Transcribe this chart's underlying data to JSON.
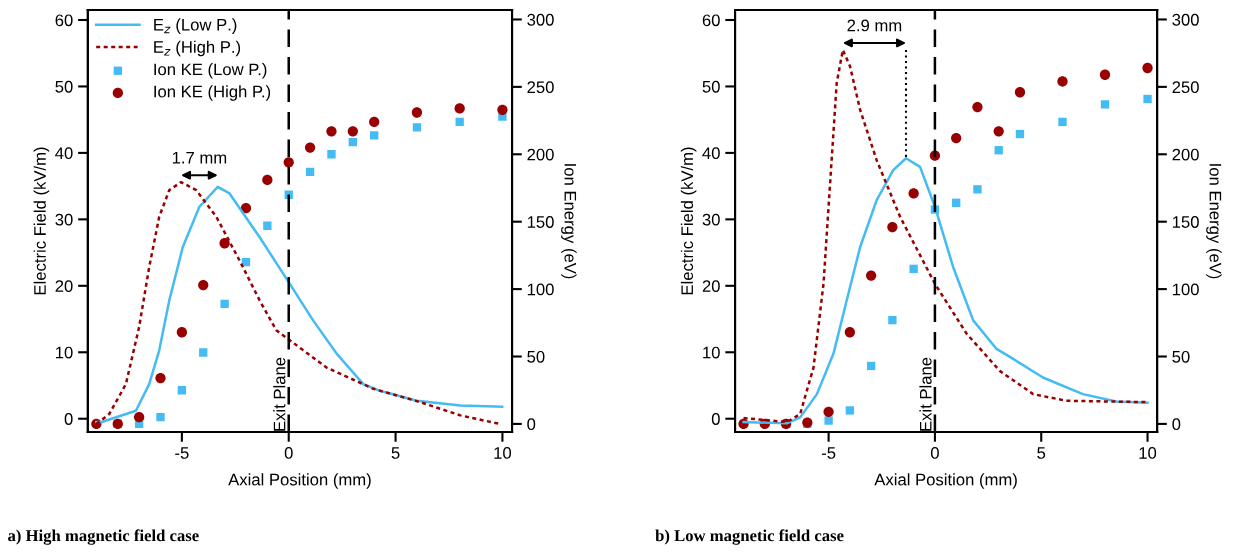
{
  "chart_data": [
    {
      "type": "line",
      "title": "a) High magnetic field case",
      "xlabel": "Axial Position (mm)",
      "ylabel": "Electric Field (kV/m)",
      "y2label": "Ion Energy (eV)",
      "xlim": [
        -9.4,
        10.45
      ],
      "xticks": [
        -5,
        0,
        5,
        10
      ],
      "ylim": [
        -2,
        61.5
      ],
      "yticks": [
        0,
        10,
        20,
        30,
        40,
        50,
        60
      ],
      "y2lim": [
        -6,
        307
      ],
      "y2ticks": [
        0,
        50,
        100,
        150,
        200,
        250,
        300
      ],
      "legend": "top left",
      "grid": false,
      "ref_lines": [
        {
          "axis": "x",
          "value": 0,
          "label": "Exit Plane",
          "color": "#000000",
          "line_style": "dashed"
        }
      ],
      "annotations": [
        "1.7 mm"
      ],
      "series": [
        {
          "name": "E$_{z}$ (Low P.)",
          "line_style": "solid",
          "color": "#44bbf2",
          "x": [
            -9.0,
            -8.75,
            -7.15,
            -6.53,
            -6.06,
            -5.59,
            -4.96,
            -4.18,
            -3.32,
            -2.77,
            -1.36,
            0.05,
            1.14,
            2.24,
            3.49,
            4.27,
            6.0,
            8.03,
            9.99
          ],
          "values": [
            -0.5,
            -0.5,
            1.2,
            5.2,
            10.3,
            17.8,
            25.8,
            31.9,
            34.9,
            33.9,
            27.3,
            20.3,
            14.8,
            9.8,
            5.2,
            4.2,
            2.7,
            2.0,
            1.8
          ]
        },
        {
          "name": "E$_{z}$ (High P.)",
          "line_style": "dashed",
          "color": "#990000",
          "x": [
            -9.0,
            -8.4,
            -7.62,
            -7.0,
            -6.53,
            -6.06,
            -5.59,
            -5.04,
            -4.33,
            -3.39,
            -2.3,
            -1.36,
            -0.58,
            0.05,
            1.77,
            3.96,
            6.15,
            8.03,
            9.9
          ],
          "values": [
            -0.8,
            0.7,
            5.2,
            13.8,
            22.8,
            30.4,
            34.4,
            35.6,
            34.4,
            30.4,
            23.8,
            17.8,
            13.3,
            11.8,
            7.7,
            4.5,
            2.5,
            0.5,
            -0.8
          ]
        },
        {
          "name": "Ion KE (Low P.)",
          "type": "scatter",
          "marker": "square",
          "axis": "y2",
          "color": "#44bbf2",
          "x": [
            -8,
            -7,
            -6,
            -5,
            -4,
            -3,
            -2,
            -1,
            0,
            1,
            2,
            3,
            4,
            6,
            8,
            10
          ],
          "values": [
            0,
            0,
            5,
            25,
            53,
            89,
            120,
            147,
            170,
            187,
            200,
            209,
            214,
            220,
            224,
            228
          ]
        },
        {
          "name": "Ion KE (High P.)",
          "type": "scatter",
          "marker": "circle",
          "axis": "y2",
          "color": "#990000",
          "x": [
            -9,
            -8,
            -7,
            -6,
            -5,
            -4,
            -3,
            -2,
            -1,
            0,
            1,
            2,
            3,
            4,
            6,
            8,
            10
          ],
          "values": [
            0,
            0,
            5,
            34,
            68,
            103,
            134,
            160,
            181,
            194,
            205,
            217,
            217,
            224,
            231,
            234,
            233
          ]
        }
      ]
    },
    {
      "type": "line",
      "title": "b) Low magnetic field case",
      "xlabel": "Axial Position (mm)",
      "ylabel": "Electric Field (kV/m)",
      "y2label": "Ion Energy (eV)",
      "xlim": [
        -9.4,
        10.45
      ],
      "xticks": [
        -5,
        0,
        5,
        10
      ],
      "ylim": [
        -2,
        61.5
      ],
      "yticks": [
        0,
        10,
        20,
        30,
        40,
        50,
        60
      ],
      "y2lim": [
        -6,
        307
      ],
      "y2ticks": [
        0,
        50,
        100,
        150,
        200,
        250,
        300
      ],
      "grid": false,
      "ref_lines": [
        {
          "axis": "x",
          "value": 0,
          "label": "Exit Plane",
          "color": "#000000",
          "line_style": "dashed"
        }
      ],
      "annotations": [
        {
          "text": "2.9 mm",
          "x": -1.36,
          "y": 39.2
        }
      ],
      "series": [
        {
          "line_style": "solid",
          "color": "#44bbf2",
          "x": [
            -9.0,
            -6.96,
            -6.34,
            -5.55,
            -4.77,
            -4.15,
            -3.52,
            -2.74,
            -1.96,
            -1.36,
            -0.7,
            0.0,
            0.86,
            1.8,
            2.9,
            3.68,
            5.08,
            6.96,
            8.53,
            10.0
          ],
          "values": [
            -0.5,
            -0.7,
            0.2,
            3.7,
            9.8,
            17.8,
            25.8,
            32.9,
            37.4,
            39.2,
            37.9,
            31.9,
            22.8,
            14.8,
            10.5,
            9.0,
            6.2,
            3.7,
            2.6,
            2.4
          ]
        },
        {
          "line_style": "dashed",
          "color": "#990000",
          "x": [
            -9.0,
            -6.96,
            -6.34,
            -5.71,
            -5.24,
            -4.93,
            -4.62,
            -4.33,
            -3.99,
            -3.52,
            -2.74,
            -1.64,
            0.0,
            1.49,
            3.05,
            4.62,
            6.18,
            10.0
          ],
          "values": [
            0.1,
            -0.5,
            0.7,
            7.7,
            20.3,
            35.4,
            50.5,
            55.5,
            53.0,
            46.5,
            38.9,
            30.4,
            20.3,
            12.8,
            7.2,
            3.7,
            2.7,
            2.5
          ]
        },
        {
          "type": "scatter",
          "marker": "square",
          "axis": "y2",
          "color": "#44bbf2",
          "x": [
            -7,
            -6,
            -5,
            -4,
            -3,
            -2,
            -1,
            0,
            1,
            2,
            3,
            4,
            6,
            8,
            10
          ],
          "values": [
            0,
            0,
            2.5,
            10,
            43,
            77,
            115,
            159,
            164,
            174,
            203,
            215,
            224,
            237,
            241
          ]
        },
        {
          "type": "scatter",
          "marker": "circle",
          "axis": "y2",
          "color": "#990000",
          "x": [
            -9,
            -8,
            -7,
            -6,
            -5,
            -4,
            -3,
            -2,
            -1,
            0,
            1,
            2,
            3,
            4,
            6,
            8,
            10
          ],
          "values": [
            0,
            0,
            0,
            1,
            9,
            68,
            110,
            146,
            171,
            199,
            212,
            235,
            217,
            246,
            254,
            259,
            264
          ]
        }
      ]
    }
  ]
}
